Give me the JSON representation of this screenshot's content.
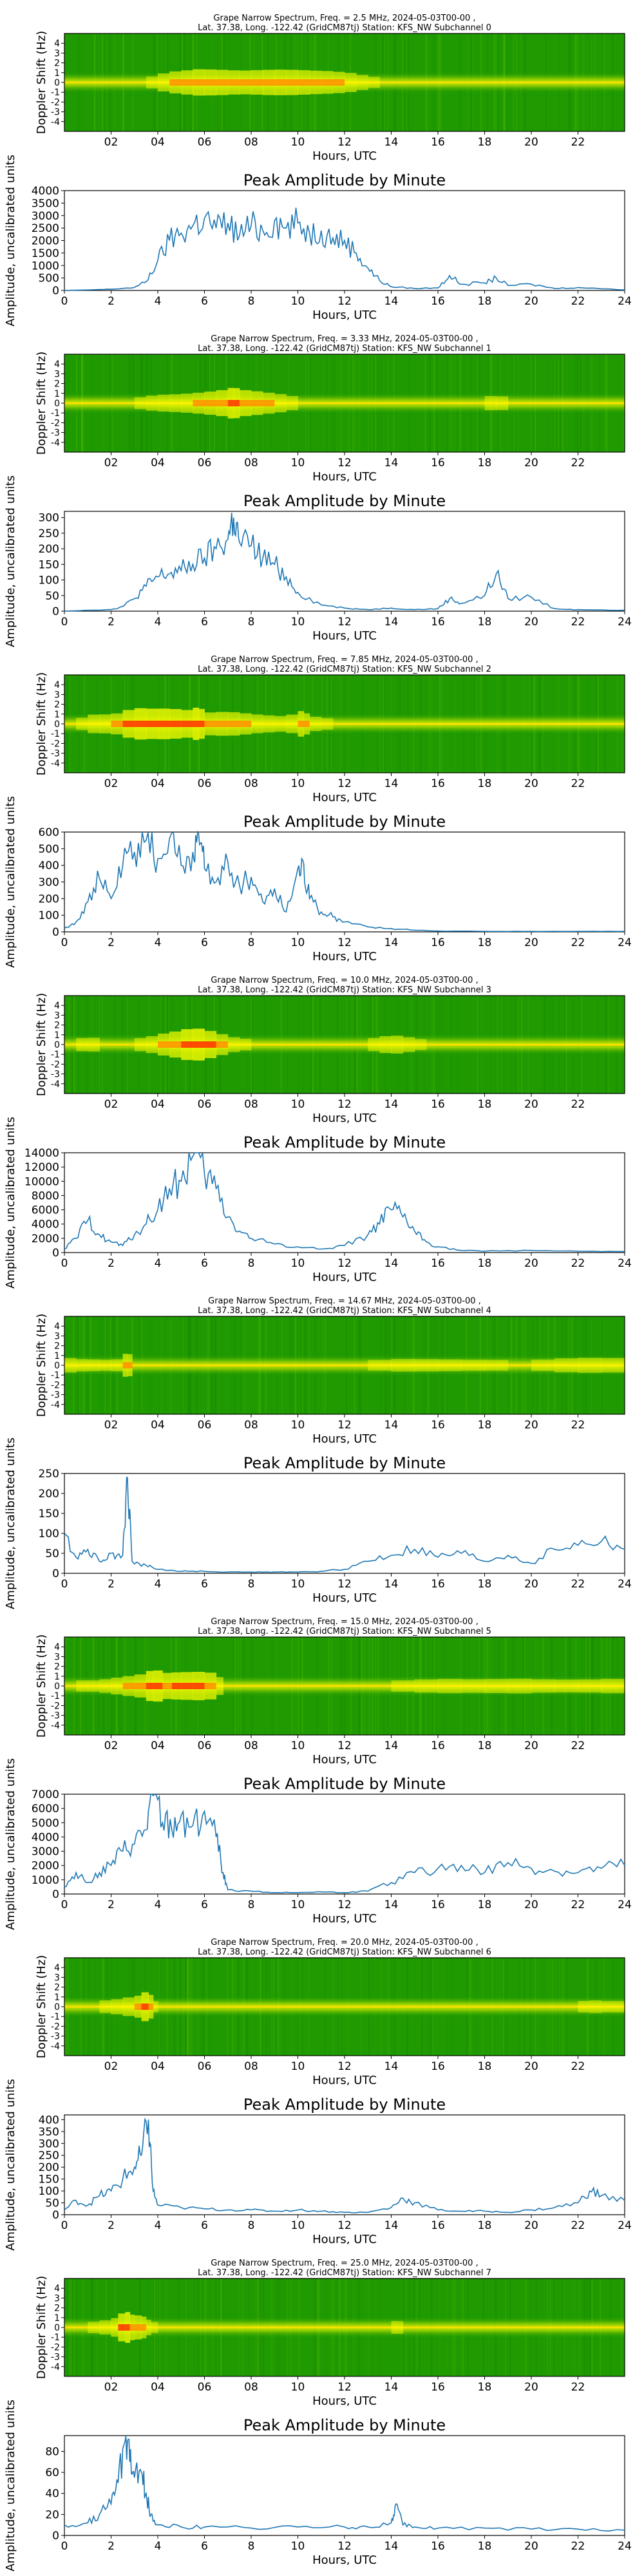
{
  "chart_data": [
    {
      "type": "heatmap",
      "title": "Grape Narrow Spectrum, Freq. = 2.5 MHz, 2024-05-03T00-00 ,",
      "subtitle": "Lat.  37.38, Long. -122.42 (GridCM87tj) Station: KFS_NW Subchannel 0",
      "xlabel": "Hours, UTC",
      "ylabel": "Doppler Shift (Hz)",
      "xticks": [
        "02",
        "04",
        "06",
        "08",
        "10",
        "12",
        "14",
        "16",
        "18",
        "20",
        "22"
      ],
      "yticks": [
        "4",
        "3",
        "2",
        "1",
        "0",
        "-1",
        "-2",
        "-3",
        "-4"
      ],
      "xlim": [
        0,
        24
      ],
      "ylim": [
        -5,
        5
      ],
      "colors": [
        "#00a000",
        "#ffff00",
        "#ff0000"
      ]
    },
    {
      "type": "line",
      "title": "Peak Amplitude by Minute",
      "xlabel": "Hours, UTC",
      "ylabel": "Amplitude, uncalibrated units",
      "xlim": [
        0,
        24
      ],
      "ylim": [
        0,
        4000
      ],
      "yticks": [
        0,
        500,
        1000,
        1500,
        2000,
        2500,
        3000,
        3500,
        4000
      ],
      "xticks": [
        0,
        2,
        4,
        6,
        8,
        10,
        12,
        14,
        16,
        18,
        20,
        22,
        24
      ],
      "color": "#1f77b4",
      "x": [
        0,
        1,
        2,
        3,
        3.5,
        4,
        4.5,
        5,
        5.5,
        6,
        6.5,
        7,
        7.5,
        8,
        8.5,
        9,
        9.5,
        10,
        10.5,
        11,
        11.5,
        12,
        12.5,
        13,
        13.5,
        14,
        15,
        16,
        16.5,
        17,
        18,
        18.5,
        19,
        20,
        21,
        22,
        24
      ],
      "y": [
        0,
        20,
        50,
        120,
        350,
        1200,
        2000,
        2300,
        2600,
        2900,
        2500,
        2700,
        2200,
        2600,
        2400,
        2800,
        2500,
        2700,
        2300,
        2400,
        2100,
        2000,
        1500,
        900,
        400,
        150,
        80,
        100,
        600,
        250,
        300,
        500,
        200,
        250,
        80,
        120,
        20
      ]
    },
    {
      "type": "heatmap",
      "title": "Grape Narrow Spectrum, Freq. = 3.33 MHz, 2024-05-03T00-00 ,",
      "subtitle": "Lat.  37.38, Long. -122.42 (GridCM87tj) Station: KFS_NW Subchannel 1",
      "xlabel": "Hours, UTC",
      "ylabel": "Doppler Shift (Hz)",
      "xticks": [
        "02",
        "04",
        "06",
        "08",
        "10",
        "12",
        "14",
        "16",
        "18",
        "20",
        "22"
      ],
      "yticks": [
        "4",
        "3",
        "2",
        "1",
        "0",
        "-1",
        "-2",
        "-3",
        "-4"
      ],
      "xlim": [
        0,
        24
      ],
      "ylim": [
        -5,
        5
      ],
      "colors": [
        "#00a000",
        "#ffff00",
        "#ff0000"
      ]
    },
    {
      "type": "line",
      "title": "Peak Amplitude by Minute",
      "xlabel": "Hours, UTC",
      "ylabel": "Amplitude, uncalibrated units",
      "xlim": [
        0,
        24
      ],
      "ylim": [
        0,
        320
      ],
      "yticks": [
        0,
        50,
        100,
        150,
        200,
        250,
        300
      ],
      "xticks": [
        0,
        2,
        4,
        6,
        8,
        10,
        12,
        14,
        16,
        18,
        20,
        22,
        24
      ],
      "color": "#1f77b4",
      "x": [
        0,
        1,
        2,
        2.5,
        3,
        3.5,
        4,
        4.5,
        5,
        5.5,
        6,
        6.5,
        7,
        7.25,
        7.5,
        8,
        8.5,
        9,
        9.5,
        10,
        11,
        12,
        13,
        14,
        15,
        16,
        16.5,
        17,
        18,
        18.5,
        19,
        20,
        21,
        22,
        24
      ],
      "y": [
        0,
        3,
        5,
        15,
        40,
        80,
        110,
        120,
        130,
        150,
        170,
        200,
        230,
        300,
        220,
        210,
        170,
        150,
        110,
        60,
        20,
        10,
        5,
        10,
        5,
        8,
        40,
        25,
        50,
        120,
        40,
        45,
        8,
        5,
        3
      ]
    },
    {
      "type": "heatmap",
      "title": "Grape Narrow Spectrum, Freq. = 7.85 MHz, 2024-05-03T00-00 ,",
      "subtitle": "Lat.  37.38, Long. -122.42 (GridCM87tj) Station: KFS_NW Subchannel 2",
      "xlabel": "Hours, UTC",
      "ylabel": "Doppler Shift (Hz)",
      "xticks": [
        "02",
        "04",
        "06",
        "08",
        "10",
        "12",
        "14",
        "16",
        "18",
        "20",
        "22"
      ],
      "yticks": [
        "4",
        "3",
        "2",
        "1",
        "0",
        "-1",
        "-2",
        "-3",
        "-4"
      ],
      "xlim": [
        0,
        24
      ],
      "ylim": [
        -5,
        5
      ],
      "colors": [
        "#00a000",
        "#ffff00",
        "#ff0000"
      ]
    },
    {
      "type": "line",
      "title": "Peak Amplitude by Minute",
      "xlabel": "Hours, UTC",
      "ylabel": "Amplitude, uncalibrated units",
      "xlim": [
        0,
        24
      ],
      "ylim": [
        0,
        600
      ],
      "yticks": [
        0,
        100,
        200,
        300,
        400,
        500,
        600
      ],
      "xticks": [
        0,
        2,
        4,
        6,
        8,
        10,
        12,
        14,
        16,
        18,
        20,
        22,
        24
      ],
      "color": "#1f77b4",
      "x": [
        0,
        0.5,
        1,
        1.5,
        2,
        2.5,
        3,
        3.5,
        4,
        4.5,
        5,
        5.5,
        5.75,
        6,
        6.5,
        7,
        7.5,
        8,
        8.5,
        9,
        9.5,
        10,
        10.25,
        10.5,
        11,
        11.5,
        12,
        13,
        14,
        15,
        16,
        18,
        20,
        22,
        24
      ],
      "y": [
        20,
        60,
        180,
        320,
        200,
        400,
        480,
        550,
        440,
        560,
        400,
        480,
        590,
        380,
        300,
        420,
        280,
        330,
        180,
        260,
        120,
        380,
        410,
        200,
        120,
        90,
        60,
        30,
        20,
        10,
        5,
        3,
        3,
        3,
        3
      ]
    },
    {
      "type": "heatmap",
      "title": "Grape Narrow Spectrum, Freq. = 10.0 MHz, 2024-05-03T00-00 ,",
      "subtitle": "Lat.  37.38, Long. -122.42 (GridCM87tj) Station: KFS_NW Subchannel 3",
      "xlabel": "Hours, UTC",
      "ylabel": "Doppler Shift (Hz)",
      "xticks": [
        "02",
        "04",
        "06",
        "08",
        "10",
        "12",
        "14",
        "16",
        "18",
        "20",
        "22"
      ],
      "yticks": [
        "4",
        "3",
        "2",
        "1",
        "0",
        "-1",
        "-2",
        "-3",
        "-4"
      ],
      "xlim": [
        0,
        24
      ],
      "ylim": [
        -5,
        5
      ],
      "colors": [
        "#00a000",
        "#ffff00",
        "#ff0000"
      ]
    },
    {
      "type": "line",
      "title": "Peak Amplitude by Minute",
      "xlabel": "Hours, UTC",
      "ylabel": "Amplitude, uncalibrated units",
      "xlim": [
        0,
        24
      ],
      "ylim": [
        0,
        14000
      ],
      "yticks": [
        0,
        2000,
        4000,
        6000,
        8000,
        10000,
        12000,
        14000
      ],
      "xticks": [
        0,
        2,
        4,
        6,
        8,
        10,
        12,
        14,
        16,
        18,
        20,
        22,
        24
      ],
      "color": "#1f77b4",
      "x": [
        0,
        0.5,
        1,
        1.5,
        2,
        2.5,
        3,
        3.5,
        4,
        4.5,
        5,
        5.5,
        6,
        6.5,
        7,
        7.5,
        8,
        9,
        10,
        11,
        12,
        13,
        13.5,
        14,
        14.5,
        15,
        15.5,
        16,
        17,
        18,
        20,
        22,
        24
      ],
      "y": [
        500,
        2000,
        4500,
        2500,
        1500,
        1000,
        2500,
        4000,
        6000,
        9000,
        10000,
        13500,
        11000,
        9000,
        5000,
        3000,
        2000,
        1200,
        800,
        500,
        1000,
        2500,
        4000,
        6000,
        5000,
        3000,
        1500,
        800,
        300,
        200,
        300,
        200,
        150
      ]
    },
    {
      "type": "heatmap",
      "title": "Grape Narrow Spectrum, Freq. = 14.67 MHz, 2024-05-03T00-00 ,",
      "subtitle": "Lat.  37.38, Long. -122.42 (GridCM87tj) Station: KFS_NW Subchannel 4",
      "xlabel": "Hours, UTC",
      "ylabel": "Doppler Shift (Hz)",
      "xticks": [
        "02",
        "04",
        "06",
        "08",
        "10",
        "12",
        "14",
        "16",
        "18",
        "20",
        "22"
      ],
      "yticks": [
        "4",
        "3",
        "2",
        "1",
        "0",
        "-1",
        "-2",
        "-3",
        "-4"
      ],
      "xlim": [
        0,
        24
      ],
      "ylim": [
        -5,
        5
      ],
      "colors": [
        "#00a000",
        "#ffff00",
        "#ff0000"
      ]
    },
    {
      "type": "line",
      "title": "Peak Amplitude by Minute",
      "xlabel": "Hours, UTC",
      "ylabel": "Amplitude, uncalibrated units",
      "xlim": [
        0,
        24
      ],
      "ylim": [
        0,
        250
      ],
      "yticks": [
        0,
        50,
        100,
        150,
        200,
        250
      ],
      "xticks": [
        0,
        2,
        4,
        6,
        8,
        10,
        12,
        14,
        16,
        18,
        20,
        22,
        24
      ],
      "color": "#1f77b4",
      "x": [
        0,
        0.5,
        1,
        1.5,
        2,
        2.5,
        2.7,
        2.9,
        3.5,
        4,
        5,
        6,
        7,
        8,
        9,
        10,
        11,
        12,
        13,
        14,
        15,
        16,
        17,
        18,
        19,
        20,
        21,
        22,
        23,
        24
      ],
      "y": [
        100,
        40,
        60,
        30,
        50,
        45,
        240,
        30,
        20,
        10,
        5,
        5,
        3,
        3,
        3,
        3,
        5,
        10,
        30,
        45,
        60,
        40,
        50,
        30,
        45,
        25,
        60,
        70,
        80,
        60
      ]
    },
    {
      "type": "heatmap",
      "title": "Grape Narrow Spectrum, Freq. = 15.0 MHz, 2024-05-03T00-00 ,",
      "subtitle": "Lat.  37.38, Long. -122.42 (GridCM87tj) Station: KFS_NW Subchannel 5",
      "xlabel": "Hours, UTC",
      "ylabel": "Doppler Shift (Hz)",
      "xticks": [
        "02",
        "04",
        "06",
        "08",
        "10",
        "12",
        "14",
        "16",
        "18",
        "20",
        "22"
      ],
      "yticks": [
        "4",
        "3",
        "2",
        "1",
        "0",
        "-1",
        "-2",
        "-3",
        "-4"
      ],
      "xlim": [
        0,
        24
      ],
      "ylim": [
        -5,
        5
      ],
      "colors": [
        "#00a000",
        "#ffff00",
        "#ff0000"
      ]
    },
    {
      "type": "line",
      "title": "Peak Amplitude by Minute",
      "xlabel": "Hours, UTC",
      "ylabel": "Amplitude, uncalibrated units",
      "xlim": [
        0,
        24
      ],
      "ylim": [
        0,
        7000
      ],
      "yticks": [
        0,
        1000,
        2000,
        3000,
        4000,
        5000,
        6000,
        7000
      ],
      "xticks": [
        0,
        2,
        4,
        6,
        8,
        10,
        12,
        14,
        16,
        18,
        20,
        22,
        24
      ],
      "color": "#1f77b4",
      "x": [
        0,
        0.5,
        1,
        1.5,
        2,
        2.5,
        3,
        3.5,
        3.8,
        4.2,
        4.6,
        5,
        5.5,
        6,
        6.5,
        6.8,
        7,
        8,
        9,
        10,
        11,
        12,
        13,
        14,
        15,
        16,
        17,
        18,
        19,
        20,
        21,
        22,
        23,
        24
      ],
      "y": [
        500,
        1500,
        800,
        1500,
        2000,
        3000,
        3500,
        4500,
        6900,
        5000,
        4500,
        5500,
        4800,
        5800,
        4000,
        1500,
        300,
        200,
        100,
        100,
        150,
        100,
        200,
        800,
        1500,
        1800,
        2000,
        1500,
        2200,
        1800,
        1600,
        1500,
        1800,
        2000
      ]
    },
    {
      "type": "heatmap",
      "title": "Grape Narrow Spectrum, Freq. = 20.0 MHz, 2024-05-03T00-00 ,",
      "subtitle": "Lat.  37.38, Long. -122.42 (GridCM87tj) Station: KFS_NW Subchannel 6",
      "xlabel": "Hours, UTC",
      "ylabel": "Doppler Shift (Hz)",
      "xticks": [
        "02",
        "04",
        "06",
        "08",
        "10",
        "12",
        "14",
        "16",
        "18",
        "20",
        "22"
      ],
      "yticks": [
        "4",
        "3",
        "2",
        "1",
        "0",
        "-1",
        "-2",
        "-3",
        "-4"
      ],
      "xlim": [
        0,
        24
      ],
      "ylim": [
        -5,
        5
      ],
      "colors": [
        "#00a000",
        "#ffff00",
        "#ff0000"
      ]
    },
    {
      "type": "line",
      "title": "Peak Amplitude by Minute",
      "xlabel": "Hours, UTC",
      "ylabel": "Amplitude, uncalibrated units",
      "xlim": [
        0,
        24
      ],
      "ylim": [
        0,
        420
      ],
      "yticks": [
        0,
        50,
        100,
        150,
        200,
        250,
        300,
        350,
        400
      ],
      "xticks": [
        0,
        2,
        4,
        6,
        8,
        10,
        12,
        14,
        16,
        18,
        20,
        22,
        24
      ],
      "color": "#1f77b4",
      "x": [
        0,
        0.5,
        1,
        1.5,
        2,
        2.5,
        3,
        3.3,
        3.6,
        3.8,
        4,
        5,
        6,
        7,
        8,
        9,
        10,
        11,
        12,
        13,
        14,
        14.5,
        15,
        16,
        17,
        18,
        19,
        20,
        21,
        22,
        22.5,
        23,
        24
      ],
      "y": [
        20,
        60,
        40,
        80,
        100,
        150,
        200,
        250,
        400,
        100,
        40,
        30,
        25,
        20,
        20,
        15,
        20,
        15,
        10,
        10,
        30,
        70,
        50,
        20,
        15,
        15,
        10,
        20,
        30,
        50,
        100,
        80,
        60
      ]
    },
    {
      "type": "heatmap",
      "title": "Grape Narrow Spectrum, Freq. = 25.0 MHz, 2024-05-03T00-00 ,",
      "subtitle": "Lat.  37.38, Long. -122.42 (GridCM87tj) Station: KFS_NW Subchannel 7",
      "xlabel": "Hours, UTC",
      "ylabel": "Doppler Shift (Hz)",
      "xticks": [
        "02",
        "04",
        "06",
        "08",
        "10",
        "12",
        "14",
        "16",
        "18",
        "20",
        "22"
      ],
      "yticks": [
        "4",
        "3",
        "2",
        "1",
        "0",
        "-1",
        "-2",
        "-3",
        "-4"
      ],
      "xlim": [
        0,
        24
      ],
      "ylim": [
        -5,
        5
      ],
      "colors": [
        "#00a000",
        "#ffff00",
        "#ff0000"
      ]
    },
    {
      "type": "line",
      "title": "Peak Amplitude by Minute",
      "xlabel": "Hours, UTC",
      "ylabel": "Amplitude, uncalibrated units",
      "xlim": [
        0,
        24
      ],
      "ylim": [
        0,
        95
      ],
      "yticks": [
        0,
        20,
        40,
        60,
        80
      ],
      "xticks": [
        0,
        2,
        4,
        6,
        8,
        10,
        12,
        14,
        16,
        18,
        20,
        22,
        24
      ],
      "color": "#1f77b4",
      "x": [
        0,
        1,
        1.5,
        2,
        2.3,
        2.6,
        2.8,
        3,
        3.3,
        3.5,
        3.7,
        4,
        5,
        6,
        8,
        10,
        12,
        13,
        14,
        14.2,
        14.5,
        15,
        16,
        18,
        20,
        22,
        24
      ],
      "y": [
        10,
        12,
        20,
        30,
        50,
        90,
        70,
        55,
        60,
        40,
        20,
        10,
        8,
        8,
        7,
        8,
        8,
        8,
        12,
        30,
        10,
        8,
        7,
        7,
        6,
        6,
        5
      ]
    }
  ]
}
